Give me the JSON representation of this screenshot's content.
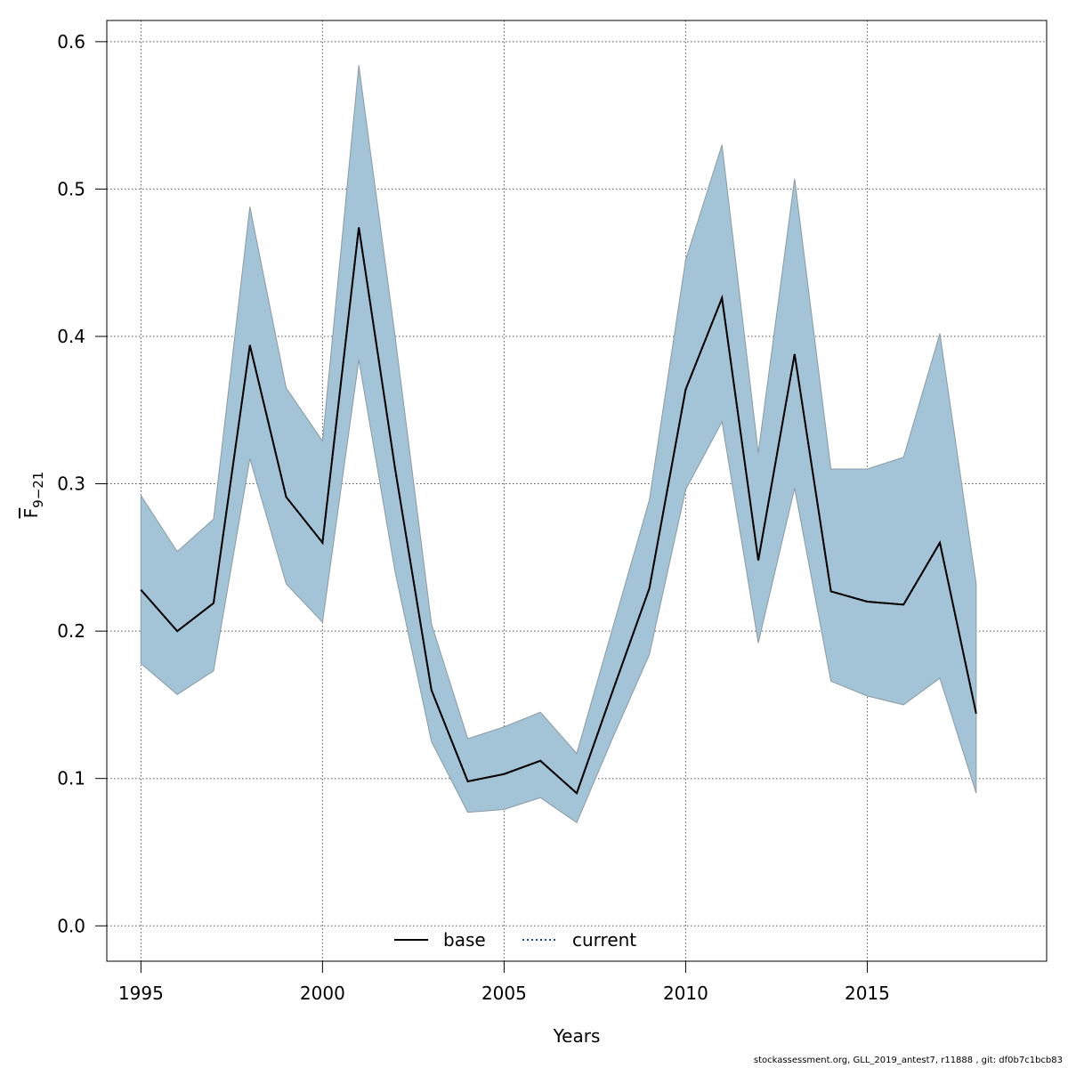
{
  "chart_data": {
    "type": "line",
    "xlabel": "Years",
    "ylabel_main": "F",
    "ylabel_sub": "9−21",
    "xlim": [
      1994.06,
      2019.94
    ],
    "ylim": [
      -0.024,
      0.6144
    ],
    "xticks": [
      1995,
      2000,
      2005,
      2010,
      2015
    ],
    "yticks": [
      0.0,
      0.1,
      0.2,
      0.3,
      0.4,
      0.5,
      0.6
    ],
    "ytick_labels": [
      "0.0",
      "0.1",
      "0.2",
      "0.3",
      "0.4",
      "0.5",
      "0.6"
    ],
    "grid": true,
    "x": [
      1995,
      1996,
      1997,
      1998,
      1999,
      2000,
      2001,
      2002,
      2003,
      2004,
      2005,
      2006,
      2007,
      2008,
      2009,
      2010,
      2011,
      2012,
      2013,
      2014,
      2015,
      2016,
      2017,
      2018
    ],
    "series": [
      {
        "name": "base",
        "line_style": "solid",
        "color": "#000000",
        "values": [
          0.228,
          0.2,
          0.219,
          0.394,
          0.291,
          0.26,
          0.474,
          0.31,
          0.16,
          0.098,
          0.103,
          0.112,
          0.09,
          0.16,
          0.229,
          0.364,
          0.426,
          0.248,
          0.388,
          0.227,
          0.22,
          0.218,
          0.26,
          0.144
        ]
      },
      {
        "name": "current",
        "line_style": "dotted",
        "color": "#000000",
        "values": [
          0.228,
          0.2,
          0.219,
          0.394,
          0.291,
          0.26,
          0.474,
          0.31,
          0.16,
          0.098,
          0.103,
          0.112,
          0.09,
          0.16,
          0.229,
          0.364,
          0.426,
          0.248,
          0.388,
          0.227,
          0.22,
          0.218,
          0.26,
          0.144
        ],
        "legend_color": "#00508a"
      }
    ],
    "confidence_band": {
      "color": "#a3c4d6",
      "border_color": "#8a9aa4",
      "lower": [
        0.178,
        0.157,
        0.173,
        0.317,
        0.232,
        0.206,
        0.384,
        0.24,
        0.125,
        0.077,
        0.079,
        0.087,
        0.07,
        0.128,
        0.184,
        0.296,
        0.342,
        0.192,
        0.297,
        0.166,
        0.156,
        0.15,
        0.168,
        0.09
      ],
      "upper": [
        0.292,
        0.254,
        0.276,
        0.488,
        0.365,
        0.329,
        0.584,
        0.4,
        0.205,
        0.127,
        0.135,
        0.145,
        0.117,
        0.203,
        0.289,
        0.452,
        0.53,
        0.321,
        0.507,
        0.31,
        0.31,
        0.318,
        0.402,
        0.232
      ]
    },
    "legend": {
      "position": "bottom-center",
      "entries": [
        {
          "label": "base",
          "line_style": "solid",
          "color": "#000000"
        },
        {
          "label": "current",
          "line_style": "dotted",
          "color": "#00508a"
        }
      ]
    }
  },
  "footer": "stockassessment.org, GLL_2019_antest7, r11888 , git: df0b7c1bcb83"
}
